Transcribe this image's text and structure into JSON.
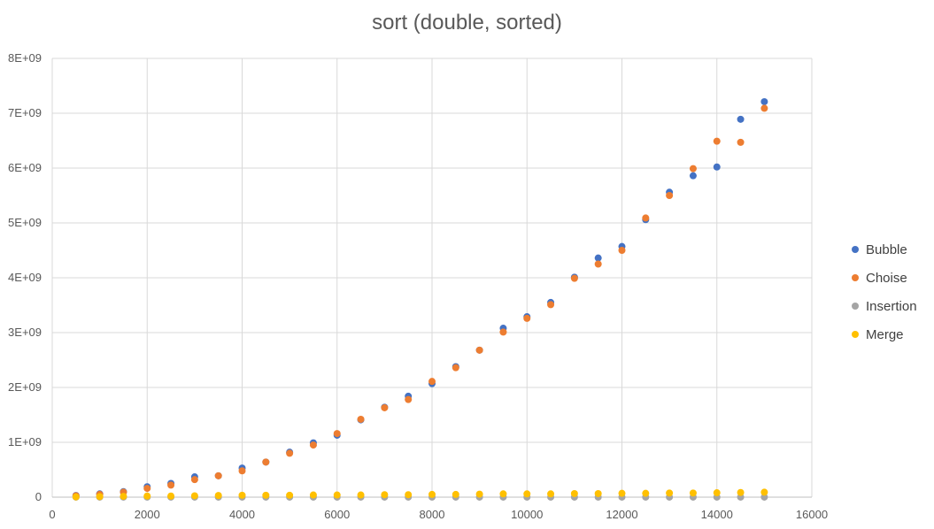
{
  "chart_data": {
    "type": "scatter",
    "title": "sort (double, sorted)",
    "xlabel": "",
    "ylabel": "",
    "xlim": [
      0,
      16000
    ],
    "ylim": [
      0,
      8000000000
    ],
    "x_ticks": [
      "0",
      "2000",
      "4000",
      "6000",
      "8000",
      "10000",
      "12000",
      "14000",
      "16000"
    ],
    "y_ticks": [
      "0",
      "1E+09",
      "2E+09",
      "3E+09",
      "4E+09",
      "5E+09",
      "6E+09",
      "7E+09",
      "8E+09"
    ],
    "grid": true,
    "legend_position": "right",
    "x": [
      500,
      1000,
      1500,
      2000,
      2500,
      3000,
      3500,
      4000,
      4500,
      5000,
      5500,
      6000,
      6500,
      7000,
      7500,
      8000,
      8500,
      9000,
      9500,
      10000,
      10500,
      11000,
      11500,
      12000,
      12500,
      13000,
      13500,
      14000,
      14500,
      15000
    ],
    "series": [
      {
        "name": "Bubble",
        "color": "#4472C4",
        "values": [
          30000000,
          60000000,
          100000000,
          190000000,
          250000000,
          370000000,
          390000000,
          530000000,
          640000000,
          820000000,
          990000000,
          1130000000,
          1410000000,
          1640000000,
          1840000000,
          2070000000,
          2380000000,
          2680000000,
          3080000000,
          3290000000,
          3550000000,
          4010000000,
          4360000000,
          4570000000,
          5060000000,
          5560000000,
          5860000000,
          6020000000,
          6890000000,
          7210000000
        ]
      },
      {
        "name": "Choise",
        "color": "#ED7D31",
        "values": [
          25000000,
          50000000,
          90000000,
          160000000,
          220000000,
          320000000,
          390000000,
          480000000,
          640000000,
          800000000,
          950000000,
          1160000000,
          1420000000,
          1630000000,
          1780000000,
          2110000000,
          2360000000,
          2680000000,
          3010000000,
          3260000000,
          3510000000,
          3990000000,
          4250000000,
          4500000000,
          5090000000,
          5500000000,
          5990000000,
          6490000000,
          6470000000,
          7090000000
        ]
      },
      {
        "name": "Insertion",
        "color": "#A5A5A5",
        "values": [
          500000,
          500000,
          500000,
          500000,
          500000,
          500000,
          500000,
          500000,
          500000,
          500000,
          500000,
          500000,
          500000,
          500000,
          500000,
          500000,
          500000,
          500000,
          500000,
          500000,
          500000,
          500000,
          500000,
          500000,
          500000,
          500000,
          500000,
          500000,
          500000,
          500000
        ]
      },
      {
        "name": "Merge",
        "color": "#FFC000",
        "values": [
          5000000,
          10000000,
          15000000,
          20000000,
          20000000,
          25000000,
          30000000,
          35000000,
          35000000,
          35000000,
          40000000,
          40000000,
          40000000,
          45000000,
          45000000,
          50000000,
          50000000,
          55000000,
          60000000,
          60000000,
          60000000,
          65000000,
          65000000,
          70000000,
          70000000,
          75000000,
          75000000,
          80000000,
          85000000,
          90000000
        ]
      }
    ]
  }
}
